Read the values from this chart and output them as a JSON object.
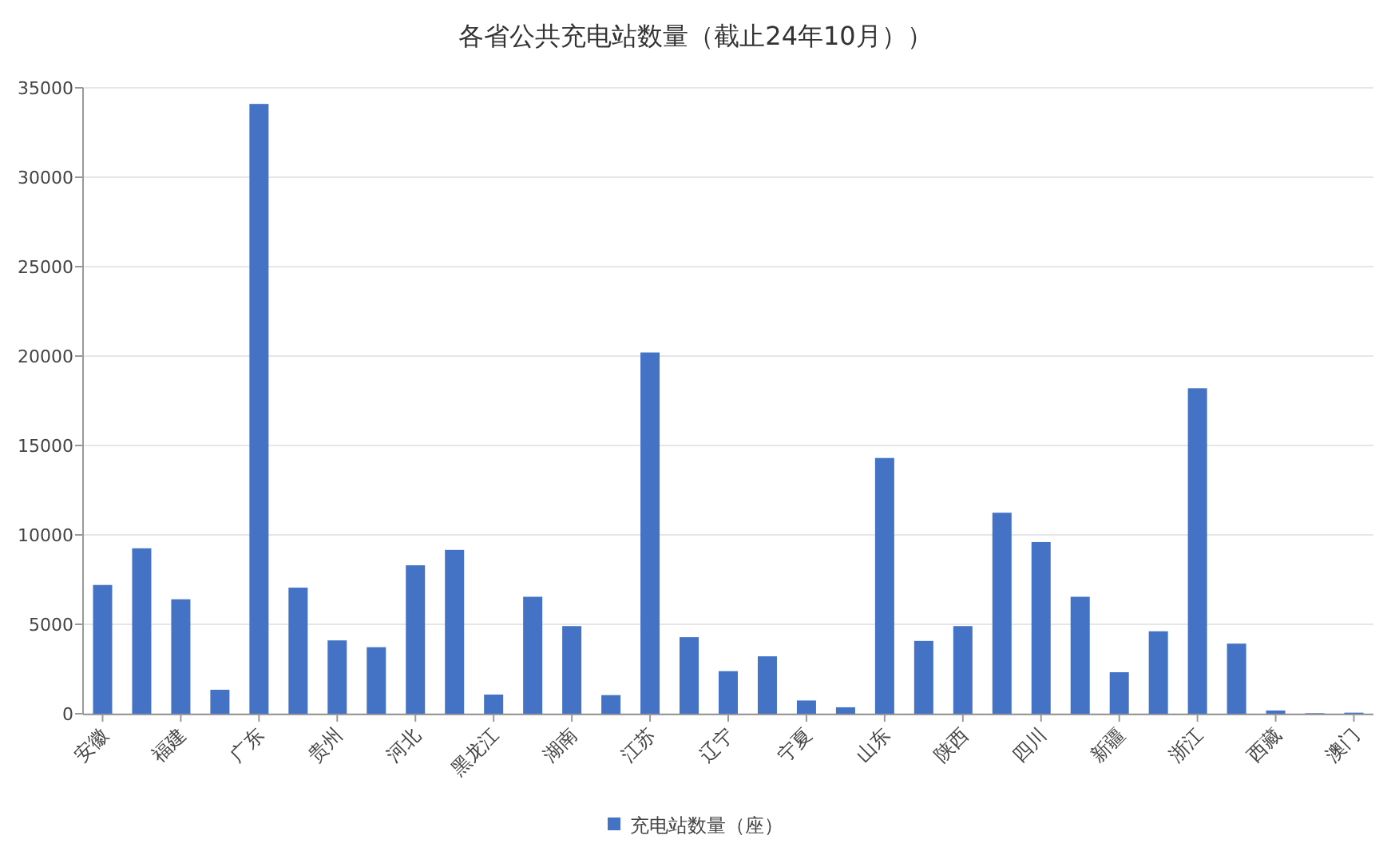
{
  "chart_data": {
    "type": "bar",
    "title": "各省公共充电站数量（截止24年10月））",
    "categories": [
      "安徽",
      null,
      "福建",
      null,
      "广东",
      null,
      "贵州",
      null,
      "河北",
      null,
      "黑龙江",
      null,
      "湖南",
      null,
      "江苏",
      null,
      "辽宁",
      null,
      "宁夏",
      null,
      "山东",
      null,
      "陕西",
      null,
      "四川",
      null,
      "新疆",
      null,
      "浙江",
      null,
      "西藏",
      null,
      "澳门"
    ],
    "series": [
      {
        "name": "充电站数量（座）",
        "color": "#4472c4",
        "values": [
          7200,
          9250,
          6400,
          1340,
          34100,
          7050,
          4100,
          3720,
          8300,
          9160,
          1070,
          6540,
          4900,
          1040,
          20200,
          4280,
          2380,
          3210,
          740,
          360,
          14300,
          4070,
          4900,
          11240,
          9600,
          6540,
          2320,
          4610,
          18200,
          3920,
          180,
          30,
          60
        ]
      }
    ],
    "ylim": [
      0,
      35000
    ],
    "yticks": [
      0,
      5000,
      10000,
      15000,
      20000,
      25000,
      30000,
      35000
    ],
    "grid": "y",
    "legend": "bottom"
  }
}
